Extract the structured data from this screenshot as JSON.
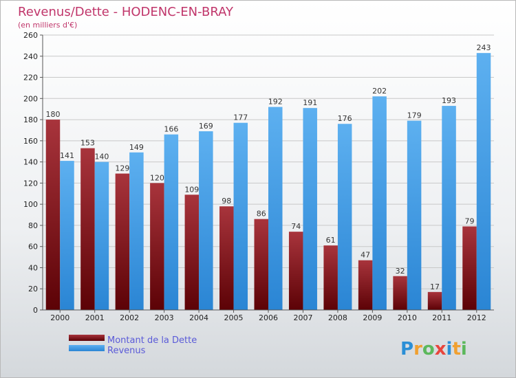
{
  "chart_data": {
    "type": "bar",
    "title": "Revenus/Dette - HODENC-EN-BRAY",
    "subtitle": "(en milliers d'€)",
    "categories": [
      "2000",
      "2001",
      "2002",
      "2003",
      "2004",
      "2005",
      "2006",
      "2007",
      "2008",
      "2009",
      "2010",
      "2011",
      "2012"
    ],
    "series": [
      {
        "name": "Montant de la Dette",
        "color": "#7a0e12",
        "values": [
          180,
          153,
          129,
          120,
          109,
          98,
          86,
          74,
          61,
          47,
          32,
          17,
          79
        ]
      },
      {
        "name": "Revenus",
        "color": "#3d9be6",
        "values": [
          141,
          140,
          149,
          166,
          169,
          177,
          192,
          191,
          176,
          202,
          179,
          193,
          243
        ]
      }
    ],
    "ylim": [
      0,
      260
    ],
    "yticks": [
      0,
      20,
      40,
      60,
      80,
      100,
      120,
      140,
      160,
      180,
      200,
      220,
      240,
      260
    ],
    "grid": true,
    "legend_position": "bottom-left"
  },
  "logo": {
    "text": "Proxiti",
    "colors": [
      "#2b8fd6",
      "#f0a030",
      "#5cb85c",
      "#e8453c"
    ]
  }
}
